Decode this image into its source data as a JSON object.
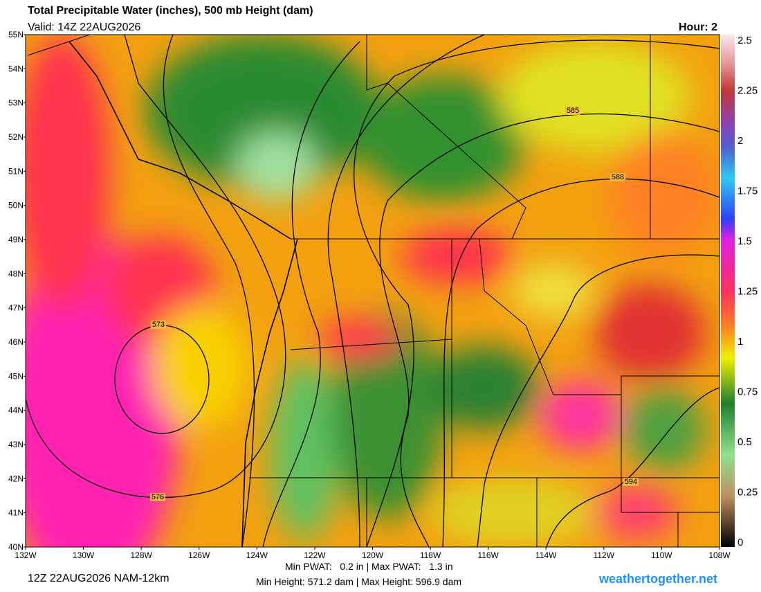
{
  "header": {
    "title": "Total Precipitable Water (inches), 500 mb Height (dam)",
    "valid": "Valid: 14Z 22AUG2026",
    "hour": "Hour: 2"
  },
  "latitude_labels": [
    "55N",
    "54N",
    "53N",
    "52N",
    "51N",
    "50N",
    "49N",
    "48N",
    "47N",
    "46N",
    "45N",
    "44N",
    "43N",
    "42N",
    "41N",
    "40N"
  ],
  "longitude_labels": [
    "132W",
    "130W",
    "128W",
    "126W",
    "124W",
    "122W",
    "120W",
    "118W",
    "116W",
    "114W",
    "112W",
    "110W",
    "108W"
  ],
  "colorbar_labels": [
    "2.5",
    "2.25",
    "2",
    "1.75",
    "1.5",
    "1.25",
    "1",
    "0.75",
    "0.5",
    "0.25",
    "0"
  ],
  "contour_labels": [
    "573",
    "576",
    "585",
    "588",
    "594"
  ],
  "footer": {
    "run": "12Z 22AUG2026 NAM-12km",
    "pwat": "Min PWAT:   0.2 in | Max PWAT:   1.3 in",
    "height": "Min Height: 571.2 dam | Max Height: 596.9 dam",
    "site": "weathertogether.net"
  }
}
